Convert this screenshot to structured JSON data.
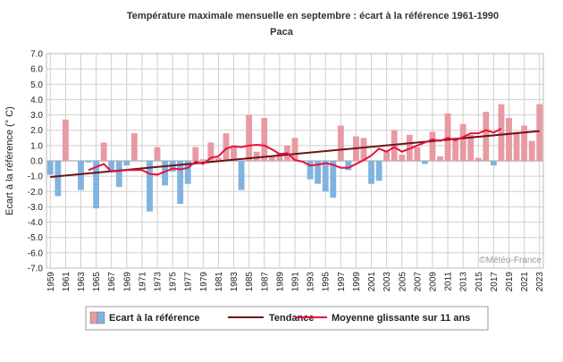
{
  "chart_data": {
    "type": "bar",
    "title": "Température maximale mensuelle en septembre : écart à la référence 1961-1990",
    "subtitle": "Paca",
    "ylabel": "Ecart à la référence (° C)",
    "xlabel": "",
    "ylim": [
      -7.0,
      7.0
    ],
    "ytick_step": 1.0,
    "grid": true,
    "credit": "©Météo-France",
    "colors": {
      "positive": "#e89aa3",
      "negative": "#82b3e0",
      "trend": "#6b1414",
      "moving_avg": "#e8103c",
      "grid": "#cfcfcf"
    },
    "legend": {
      "bars": "Ecart à la référence",
      "trend": "Tendance",
      "moving_avg": "Moyenne glissante sur 11 ans"
    },
    "years": [
      1959,
      1960,
      1961,
      1962,
      1963,
      1964,
      1965,
      1966,
      1967,
      1968,
      1969,
      1970,
      1971,
      1972,
      1973,
      1974,
      1975,
      1976,
      1977,
      1978,
      1979,
      1980,
      1981,
      1982,
      1983,
      1984,
      1985,
      1986,
      1987,
      1988,
      1989,
      1990,
      1991,
      1992,
      1993,
      1994,
      1995,
      1996,
      1997,
      1998,
      1999,
      2000,
      2001,
      2002,
      2003,
      2004,
      2005,
      2006,
      2007,
      2008,
      2009,
      2010,
      2011,
      2012,
      2013,
      2014,
      2015,
      2016,
      2017,
      2018,
      2019,
      2020,
      2021,
      2022,
      2023
    ],
    "x_tick_labels": [
      "1959",
      "1961",
      "1963",
      "1965",
      "1967",
      "1969",
      "1971",
      "1973",
      "1975",
      "1977",
      "1979",
      "1981",
      "1983",
      "1985",
      "1987",
      "1989",
      "1991",
      "1993",
      "1995",
      "1997",
      "1999",
      "2001",
      "2003",
      "2005",
      "2007",
      "2009",
      "2011",
      "2013",
      "2015",
      "2017",
      "2019",
      "2021",
      "2023"
    ],
    "values": [
      -0.9,
      -2.3,
      2.7,
      0.0,
      -1.9,
      -0.1,
      -3.1,
      1.2,
      -0.7,
      -1.7,
      -0.3,
      1.8,
      0.0,
      -3.3,
      0.9,
      -1.6,
      -0.7,
      -2.8,
      -1.5,
      0.9,
      0.1,
      1.2,
      0.2,
      1.8,
      1.0,
      -1.9,
      3.0,
      0.6,
      2.8,
      0.3,
      0.5,
      1.0,
      1.5,
      0.0,
      -1.2,
      -1.5,
      -2.0,
      -2.4,
      2.3,
      -0.6,
      1.6,
      1.5,
      -1.5,
      -1.3,
      0.6,
      2.0,
      0.4,
      1.7,
      0.9,
      -0.2,
      1.9,
      0.3,
      3.1,
      1.5,
      2.4,
      1.7,
      0.2,
      3.2,
      -0.3,
      3.7,
      2.8,
      1.9,
      2.3,
      1.3,
      3.7
    ],
    "moving_average": {
      "years": [
        1964,
        1965,
        1966,
        1967,
        1968,
        1969,
        1970,
        1971,
        1972,
        1973,
        1974,
        1975,
        1976,
        1977,
        1978,
        1979,
        1980,
        1981,
        1982,
        1983,
        1984,
        1985,
        1986,
        1987,
        1988,
        1989,
        1990,
        1991,
        1992,
        1993,
        1994,
        1995,
        1996,
        1997,
        1998,
        1999,
        2000,
        2001,
        2002,
        2003,
        2004,
        2005,
        2006,
        2007,
        2008,
        2009,
        2010,
        2011,
        2012,
        2013,
        2014,
        2015,
        2016,
        2017,
        2018
      ],
      "values": [
        -0.6,
        -0.4,
        -0.2,
        -0.7,
        -0.65,
        -0.6,
        -0.6,
        -0.6,
        -0.85,
        -0.9,
        -0.7,
        -0.5,
        -0.55,
        -0.45,
        -0.05,
        -0.2,
        0.2,
        0.3,
        0.8,
        0.95,
        0.9,
        1.0,
        1.05,
        1.0,
        0.75,
        0.45,
        0.5,
        0.05,
        -0.05,
        -0.3,
        -0.25,
        -0.15,
        -0.25,
        -0.45,
        -0.45,
        -0.2,
        0.05,
        0.35,
        0.8,
        0.6,
        0.9,
        0.6,
        0.8,
        1.0,
        1.2,
        1.4,
        1.3,
        1.5,
        1.35,
        1.55,
        1.8,
        1.8,
        2.0,
        1.85,
        2.1
      ]
    },
    "trend": {
      "x": [
        1959,
        2023
      ],
      "y": [
        -1.05,
        1.95
      ]
    }
  }
}
